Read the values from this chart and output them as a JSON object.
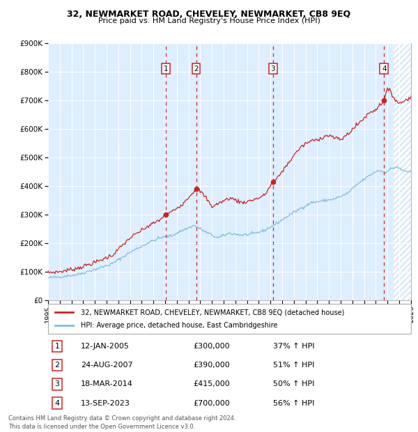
{
  "title": "32, NEWMARKET ROAD, CHEVELEY, NEWMARKET, CB8 9EQ",
  "subtitle": "Price paid vs. HM Land Registry's House Price Index (HPI)",
  "sales": [
    {
      "date_num": 2005.04,
      "price": 300000,
      "label": "1"
    },
    {
      "date_num": 2007.65,
      "price": 390000,
      "label": "2"
    },
    {
      "date_num": 2014.21,
      "price": 415000,
      "label": "3"
    },
    {
      "date_num": 2023.71,
      "price": 700000,
      "label": "4"
    }
  ],
  "table_rows": [
    {
      "num": "1",
      "date": "12-JAN-2005",
      "price": "£300,000",
      "pct": "37% ↑ HPI"
    },
    {
      "num": "2",
      "date": "24-AUG-2007",
      "price": "£390,000",
      "pct": "51% ↑ HPI"
    },
    {
      "num": "3",
      "date": "18-MAR-2014",
      "price": "£415,000",
      "pct": "50% ↑ HPI"
    },
    {
      "num": "4",
      "date": "13-SEP-2023",
      "price": "£700,000",
      "pct": "56% ↑ HPI"
    }
  ],
  "legend_line1": "32, NEWMARKET ROAD, CHEVELEY, NEWMARKET, CB8 9EQ (detached house)",
  "legend_line2": "HPI: Average price, detached house, East Cambridgeshire",
  "footer": "Contains HM Land Registry data © Crown copyright and database right 2024.\nThis data is licensed under the Open Government Licence v3.0.",
  "hpi_color": "#7abde0",
  "price_color": "#cc2222",
  "vline_color": "#cc2222",
  "box_color": "#cc2222",
  "bg_color": "#ddeeff",
  "hatch_bg": "#c8d8e8",
  "ylim": [
    0,
    900000
  ],
  "ytick_vals": [
    0,
    100000,
    200000,
    300000,
    400000,
    500000,
    600000,
    700000,
    800000,
    900000
  ],
  "ytick_labels": [
    "£0",
    "£100K",
    "£200K",
    "£300K",
    "£400K",
    "£500K",
    "£600K",
    "£700K",
    "£800K",
    "£900K"
  ],
  "xlim": [
    1995.0,
    2026.0
  ],
  "future_start": 2024.5,
  "hpi_anchors": [
    [
      1995.0,
      78000
    ],
    [
      1996.0,
      82000
    ],
    [
      1997.5,
      90000
    ],
    [
      1999.0,
      108000
    ],
    [
      2000.5,
      128000
    ],
    [
      2002.0,
      168000
    ],
    [
      2003.5,
      200000
    ],
    [
      2004.5,
      218000
    ],
    [
      2005.5,
      225000
    ],
    [
      2006.5,
      245000
    ],
    [
      2007.5,
      262000
    ],
    [
      2008.5,
      238000
    ],
    [
      2009.5,
      218000
    ],
    [
      2010.5,
      235000
    ],
    [
      2011.5,
      228000
    ],
    [
      2012.5,
      232000
    ],
    [
      2013.5,
      245000
    ],
    [
      2014.5,
      268000
    ],
    [
      2015.5,
      295000
    ],
    [
      2016.5,
      320000
    ],
    [
      2017.5,
      342000
    ],
    [
      2018.5,
      348000
    ],
    [
      2019.5,
      355000
    ],
    [
      2020.5,
      372000
    ],
    [
      2021.5,
      408000
    ],
    [
      2022.5,
      438000
    ],
    [
      2023.2,
      455000
    ],
    [
      2023.8,
      448000
    ],
    [
      2024.3,
      460000
    ],
    [
      2024.8,
      468000
    ],
    [
      2025.2,
      455000
    ],
    [
      2025.8,
      450000
    ],
    [
      2026.0,
      448000
    ]
  ],
  "price_anchors": [
    [
      1995.0,
      97000
    ],
    [
      1996.0,
      100000
    ],
    [
      1997.5,
      112000
    ],
    [
      1999.0,
      132000
    ],
    [
      2000.5,
      158000
    ],
    [
      2002.0,
      218000
    ],
    [
      2003.5,
      258000
    ],
    [
      2004.5,
      280000
    ],
    [
      2005.04,
      300000
    ],
    [
      2005.5,
      308000
    ],
    [
      2006.5,
      338000
    ],
    [
      2007.65,
      390000
    ],
    [
      2008.0,
      382000
    ],
    [
      2008.5,
      358000
    ],
    [
      2009.0,
      328000
    ],
    [
      2009.5,
      338000
    ],
    [
      2010.5,
      358000
    ],
    [
      2011.0,
      352000
    ],
    [
      2011.5,
      342000
    ],
    [
      2012.0,
      345000
    ],
    [
      2012.5,
      352000
    ],
    [
      2013.0,
      358000
    ],
    [
      2013.5,
      368000
    ],
    [
      2014.21,
      415000
    ],
    [
      2014.5,
      422000
    ],
    [
      2015.0,
      452000
    ],
    [
      2015.5,
      478000
    ],
    [
      2016.0,
      508000
    ],
    [
      2016.5,
      532000
    ],
    [
      2017.0,
      548000
    ],
    [
      2017.5,
      558000
    ],
    [
      2018.0,
      562000
    ],
    [
      2018.5,
      572000
    ],
    [
      2019.0,
      578000
    ],
    [
      2019.5,
      568000
    ],
    [
      2020.0,
      562000
    ],
    [
      2020.5,
      578000
    ],
    [
      2021.0,
      598000
    ],
    [
      2021.5,
      618000
    ],
    [
      2022.0,
      638000
    ],
    [
      2022.5,
      658000
    ],
    [
      2023.0,
      668000
    ],
    [
      2023.71,
      700000
    ],
    [
      2023.85,
      722000
    ],
    [
      2024.0,
      738000
    ],
    [
      2024.3,
      728000
    ],
    [
      2024.5,
      712000
    ],
    [
      2024.8,
      698000
    ],
    [
      2025.0,
      688000
    ],
    [
      2025.5,
      700000
    ],
    [
      2026.0,
      712000
    ]
  ],
  "hpi_noise_seed": 42,
  "hpi_noise_std": 2500,
  "price_noise_seed": 7,
  "price_noise_std": 3500
}
